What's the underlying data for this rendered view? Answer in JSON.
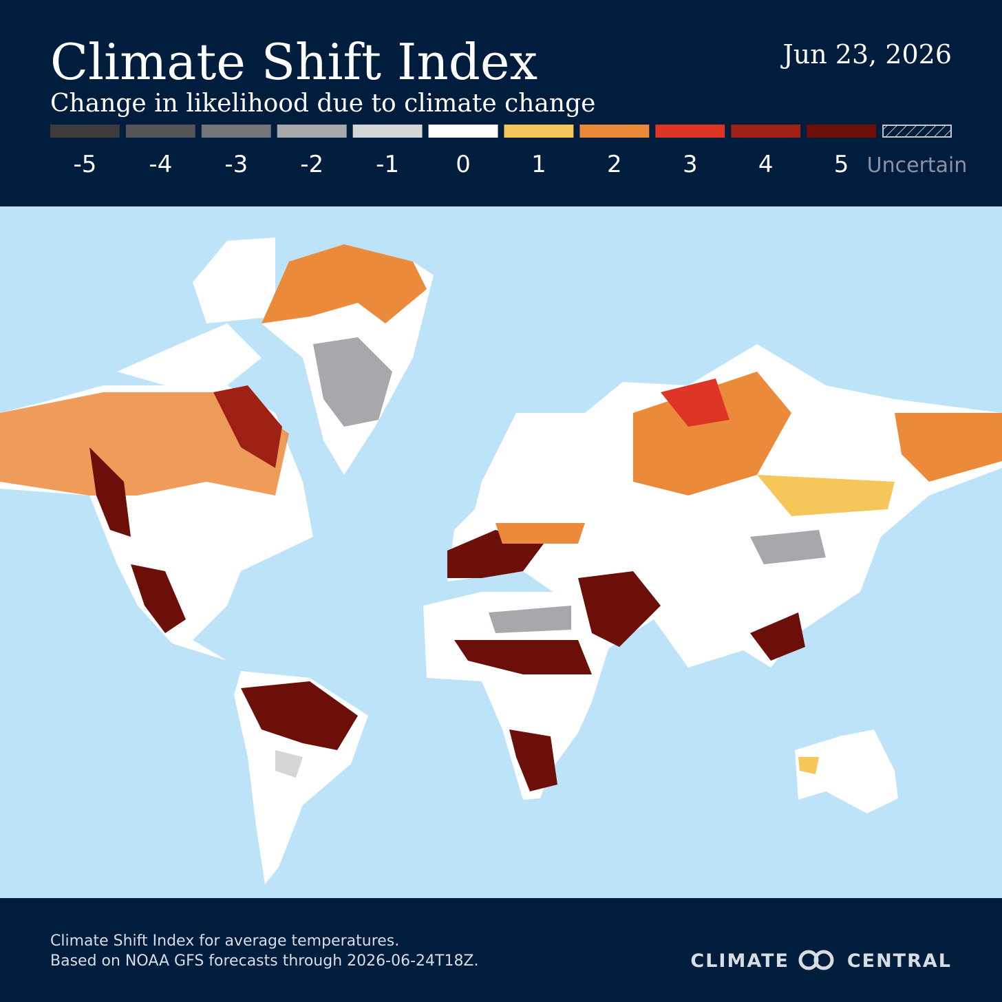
{
  "header": {
    "title": "Climate Shift Index",
    "subtitle": "Change in likelihood due to climate change",
    "date": "Jun 23, 2026"
  },
  "legend": {
    "items": [
      {
        "label": "-5",
        "color": "#3f3a3b"
      },
      {
        "label": "-4",
        "color": "#565557"
      },
      {
        "label": "-3",
        "color": "#737477"
      },
      {
        "label": "-2",
        "color": "#a6a8ac"
      },
      {
        "label": "-1",
        "color": "#d5d6d8"
      },
      {
        "label": "0",
        "color": "#ffffff"
      },
      {
        "label": "1",
        "color": "#f5c65a"
      },
      {
        "label": "2",
        "color": "#ec8a3c"
      },
      {
        "label": "3",
        "color": "#dd3526"
      },
      {
        "label": "4",
        "color": "#9e2114"
      },
      {
        "label": "5",
        "color": "#6b0f08"
      }
    ],
    "uncertain": "Uncertain"
  },
  "footer": {
    "lines": [
      "Climate Shift Index for average temperatures.",
      "Based on NOAA GFS forecasts through 2026-06-24T18Z."
    ],
    "logo_left": "CLIMATE",
    "logo_right": "CENTRAL"
  }
}
